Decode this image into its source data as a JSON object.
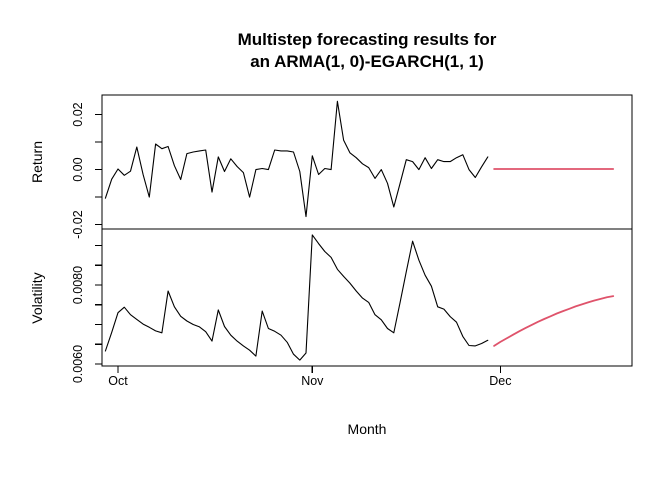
{
  "title": {
    "line1": "Multistep forecasting results for",
    "line2": "an ARMA(1, 0)-EGARCH(1, 1)"
  },
  "colors": {
    "observed": "#000000",
    "forecast": "#DF536B",
    "background": "#FFFFFF",
    "frame": "#000000"
  },
  "chart_data": {
    "type": "line",
    "title": "Multistep forecasting results for an ARMA(1, 0)-EGARCH(1, 1)",
    "xlabel": "Month",
    "x_tick_labels": [
      "Oct",
      "Nov",
      "Dec"
    ],
    "x_ticks": [
      {
        "day": 0,
        "label": "Oct"
      },
      {
        "day": 31,
        "label": "Nov"
      },
      {
        "day": 61,
        "label": "Dec"
      }
    ],
    "x_day_range": [
      -2.55,
      82.0
    ],
    "legend": "none",
    "grid": false,
    "panels": [
      {
        "ylabel": "Return",
        "ylim": [
          -0.0216,
          0.0271
        ],
        "y_ticks": [
          {
            "value": 0.02,
            "label": "0.02"
          },
          {
            "value": 0.01,
            "label": ""
          },
          {
            "value": 0.0,
            "label": "0.00"
          },
          {
            "value": -0.01,
            "label": ""
          },
          {
            "value": -0.02,
            "label": "-0.02"
          }
        ],
        "series": [
          {
            "name": "observed-return",
            "role": "observed",
            "start_day": -2,
            "step_days": 1,
            "values": [
              -0.0104,
              -0.0035,
              0.0002,
              -0.0021,
              -0.0006,
              0.0082,
              -0.0018,
              -0.01,
              0.0093,
              0.0076,
              0.0084,
              0.0014,
              -0.0036,
              0.0058,
              0.0064,
              0.0068,
              0.0071,
              -0.0082,
              0.0046,
              -0.0007,
              0.0039,
              0.0011,
              -0.0011,
              -0.01,
              0.0,
              0.0004,
              0.0,
              0.0071,
              0.0068,
              0.0068,
              0.0064,
              -0.0007,
              -0.0171,
              0.005,
              -0.0018,
              0.0004,
              0.0,
              0.0248,
              0.0107,
              0.0061,
              0.0043,
              0.0021,
              0.0007,
              -0.0032,
              0.0,
              -0.005,
              -0.0136,
              -0.005,
              0.0036,
              0.0029,
              0.0,
              0.0043,
              0.0004,
              0.0036,
              0.0029,
              0.0029,
              0.0043,
              0.0054,
              0.0,
              -0.0029,
              0.001,
              0.0046
            ]
          },
          {
            "name": "forecast-return",
            "role": "forecast",
            "start_day": 60,
            "step_days": 1,
            "values": [
              0.0002,
              0.0002,
              0.0002,
              0.0002,
              0.0002,
              0.0002,
              0.0002,
              0.0002,
              0.0002,
              0.0002,
              0.0002,
              0.0002,
              0.0002,
              0.0002,
              0.0002,
              0.0002,
              0.0002,
              0.0002,
              0.0002,
              0.0002
            ]
          }
        ]
      },
      {
        "ylabel": "Volatility",
        "ylim": [
          0.00595,
          0.00942
        ],
        "y_ticks": [
          {
            "value": 0.009,
            "label": ""
          },
          {
            "value": 0.0085,
            "label": ""
          },
          {
            "value": 0.008,
            "label": "0.0080"
          },
          {
            "value": 0.0075,
            "label": ""
          },
          {
            "value": 0.007,
            "label": ""
          },
          {
            "value": 0.0065,
            "label": ""
          },
          {
            "value": 0.006,
            "label": "0.0060"
          }
        ],
        "series": [
          {
            "name": "observed-volatility",
            "role": "observed",
            "start_day": -2,
            "step_days": 1,
            "values": [
              0.00633,
              0.0068,
              0.0073,
              0.00744,
              0.00725,
              0.00713,
              0.00701,
              0.00693,
              0.00684,
              0.00679,
              0.00785,
              0.00745,
              0.00721,
              0.00709,
              0.007,
              0.00694,
              0.00682,
              0.00658,
              0.00737,
              0.00695,
              0.00673,
              0.00658,
              0.00646,
              0.00635,
              0.0062,
              0.00734,
              0.0069,
              0.00683,
              0.00673,
              0.00655,
              0.00625,
              0.0061,
              0.00628,
              0.00927,
              0.00905,
              0.00885,
              0.0087,
              0.0084,
              0.00822,
              0.00805,
              0.00785,
              0.00767,
              0.00756,
              0.00725,
              0.00712,
              0.0069,
              0.00679,
              0.00756,
              0.00834,
              0.00911,
              0.00863,
              0.00825,
              0.00797,
              0.00745,
              0.00739,
              0.0072,
              0.00706,
              0.0067,
              0.00647,
              0.00646,
              0.00652,
              0.0066
            ]
          },
          {
            "name": "forecast-volatility",
            "role": "forecast",
            "start_day": 60,
            "step_days": 1,
            "values": [
              0.00646,
              0.00656,
              0.00665,
              0.00674,
              0.00683,
              0.00691,
              0.00699,
              0.00707,
              0.00714,
              0.00721,
              0.00728,
              0.00734,
              0.0074,
              0.00746,
              0.00751,
              0.00756,
              0.00761,
              0.00765,
              0.00769,
              0.00772
            ]
          }
        ]
      }
    ]
  }
}
